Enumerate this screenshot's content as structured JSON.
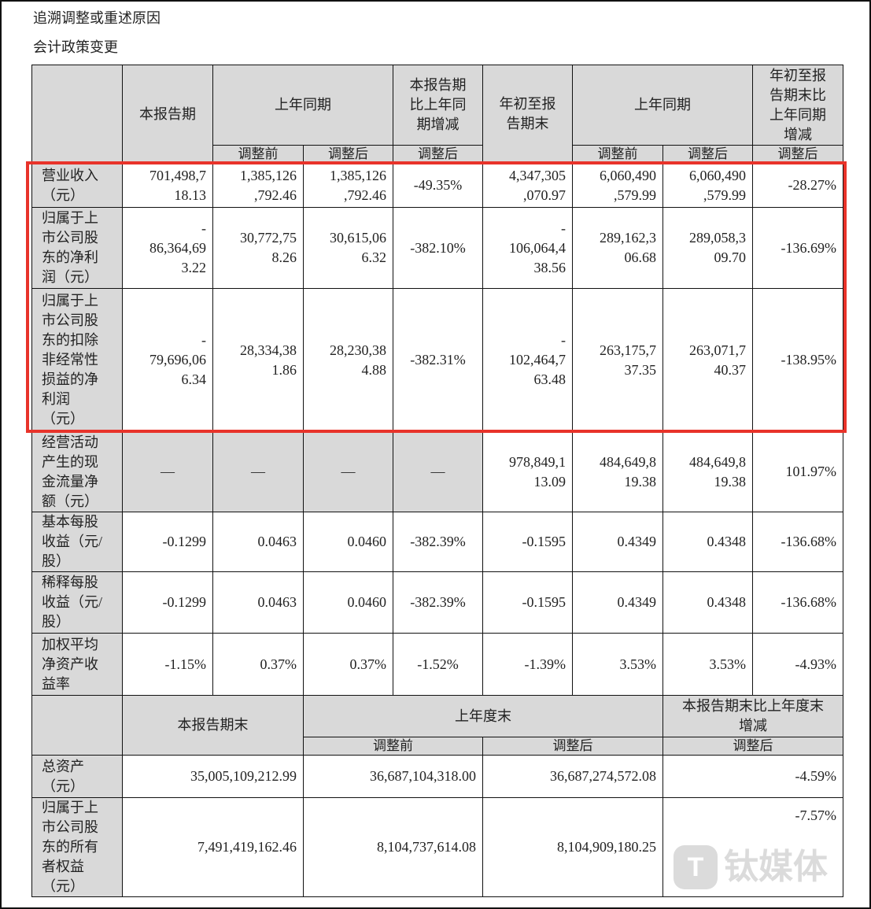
{
  "heading": {
    "line1": "追溯调整或重述原因",
    "line2": "会计政策变更"
  },
  "table1": {
    "headers": {
      "current": "本报告期",
      "prior_same": "上年同期",
      "change": "本报告期\n比上年同\n期增减",
      "ytd": "年初至报\n告期末",
      "prior_same_ytd": "上年同期",
      "ytd_change": "年初至报\n告期末比\n上年同期\n增减",
      "before": "调整前",
      "after": "调整后",
      "after2": "调整后",
      "before_ytd": "调整前",
      "after_ytd": "调整后",
      "after_ytd2": "调整后"
    },
    "rows": [
      {
        "label": "营业收入\n（元）",
        "values": [
          "701,498,7\n18.13",
          "1,385,126\n,792.46",
          "1,385,126\n,792.46",
          "-49.35%",
          "4,347,305\n,070.97",
          "6,060,490\n,579.99",
          "6,060,490\n,579.99",
          "-28.27%"
        ]
      },
      {
        "label": "归属于上\n市公司股\n东的净利\n润（元）",
        "values": [
          "-\n86,364,69\n3.22",
          "30,772,75\n8.26",
          "30,615,06\n6.32",
          "-382.10%",
          "-\n106,064,4\n38.56",
          "289,162,3\n06.68",
          "289,058,3\n09.70",
          "-136.69%"
        ]
      },
      {
        "label": "归属于上\n市公司股\n东的扣除\n非经常性\n损益的净\n利润\n（元）",
        "values": [
          "-\n79,696,06\n6.34",
          "28,334,38\n1.86",
          "28,230,38\n4.88",
          "-382.31%",
          "-\n102,464,7\n63.48",
          "263,175,7\n37.35",
          "263,071,7\n40.37",
          "-138.95%"
        ]
      },
      {
        "label": "经营活动\n产生的现\n金流量净\n额（元）",
        "values": [
          "—",
          "—",
          "—",
          "—",
          "978,849,1\n13.09",
          "484,649,8\n19.38",
          "484,649,8\n19.38",
          "101.97%"
        ],
        "gray_cols": [
          0,
          1,
          2,
          3
        ]
      },
      {
        "label": "基本每股\n收益（元/\n股）",
        "values": [
          "-0.1299",
          "0.0463",
          "0.0460",
          "-382.39%",
          "-0.1595",
          "0.4349",
          "0.4348",
          "-136.68%"
        ]
      },
      {
        "label": "稀释每股\n收益（元/\n股）",
        "values": [
          "-0.1299",
          "0.0463",
          "0.0460",
          "-382.39%",
          "-0.1595",
          "0.4349",
          "0.4348",
          "-136.68%"
        ]
      },
      {
        "label": "加权平均\n净资产收\n益率",
        "values": [
          "-1.15%",
          "0.37%",
          "0.37%",
          "-1.52%",
          "-1.39%",
          "3.53%",
          "3.53%",
          "-4.93%"
        ]
      }
    ]
  },
  "table2": {
    "headers": {
      "period_end": "本报告期末",
      "prior_year_end": "上年度末",
      "change": "本报告期末比上年度末\n增减",
      "before": "调整前",
      "after": "调整后",
      "after2": "调整后"
    },
    "rows": [
      {
        "label": "总资产\n（元）",
        "values": [
          "35,005,109,212.99",
          "36,687,104,318.00",
          "36,687,274,572.08",
          "-4.59%"
        ]
      },
      {
        "label": "归属于上\n市公司股\n东的所有\n者权益\n（元）",
        "values": [
          "7,491,419,162.46",
          "8,104,737,614.08",
          "8,104,909,180.25",
          "-7.57%"
        ]
      }
    ]
  },
  "highlight_color": "#e8332a",
  "watermark": {
    "text": "钛媒体",
    "logo": "T"
  }
}
